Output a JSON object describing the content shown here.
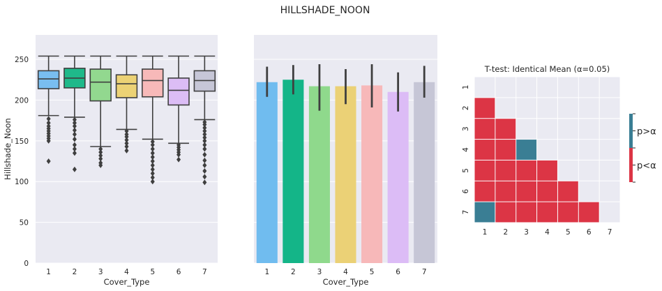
{
  "figure": {
    "title": "HILLSHADE_NOON"
  },
  "colors": {
    "boxes": [
      "#79bef0",
      "#1fb98a",
      "#92d88f",
      "#ecd275",
      "#f7b9b9",
      "#dcbdf5",
      "#c6c6d7"
    ],
    "bars": [
      "#70bcef",
      "#14b588",
      "#8fd98c",
      "#ebd176",
      "#f7b8b9",
      "#dcbcf6",
      "#c6c6d6"
    ],
    "panel_bg": "#eaeaf2",
    "grid": "#ffffff",
    "dark": "#3f3f3f",
    "ttest_sig": "#dc3545",
    "ttest_nonsig": "#3a7e94"
  },
  "chart_data": [
    {
      "type": "box",
      "xlabel": "Cover_Type",
      "ylabel": "Hillshade_Noon",
      "ylim": [
        0,
        280
      ],
      "yticks": [
        0,
        50,
        100,
        150,
        200,
        250
      ],
      "categories": [
        "1",
        "2",
        "3",
        "4",
        "5",
        "6",
        "7"
      ],
      "boxes": [
        {
          "whislo": 181,
          "q1": 214,
          "med": 226,
          "q3": 236,
          "whishi": 254,
          "fliers": [
            177,
            172,
            168,
            165,
            162,
            159,
            156,
            153,
            150,
            125
          ]
        },
        {
          "whislo": 179,
          "q1": 215,
          "med": 227,
          "q3": 239,
          "whishi": 254,
          "fliers": [
            176,
            172,
            168,
            163,
            158,
            152,
            145,
            140,
            135,
            115
          ]
        },
        {
          "whislo": 143,
          "q1": 199,
          "med": 222,
          "q3": 238,
          "whishi": 254,
          "fliers": [
            140,
            136,
            132,
            128,
            123,
            120
          ]
        },
        {
          "whislo": 164,
          "q1": 203,
          "med": 220,
          "q3": 231,
          "whishi": 254,
          "fliers": [
            162,
            158,
            155,
            151,
            147,
            143,
            138
          ]
        },
        {
          "whislo": 152,
          "q1": 204,
          "med": 224,
          "q3": 238,
          "whishi": 254,
          "fliers": [
            149,
            145,
            140,
            135,
            130,
            125,
            120,
            115,
            110,
            105,
            100
          ]
        },
        {
          "whislo": 147,
          "q1": 194,
          "med": 212,
          "q3": 227,
          "whishi": 254,
          "fliers": [
            145,
            142,
            139,
            136,
            133,
            127
          ]
        },
        {
          "whislo": 176,
          "q1": 211,
          "med": 224,
          "q3": 236,
          "whishi": 254,
          "fliers": [
            173,
            170,
            166,
            162,
            158,
            154,
            150,
            145,
            140,
            133,
            126,
            120,
            113,
            106,
            99
          ]
        }
      ]
    },
    {
      "type": "bar",
      "xlabel": "Cover_Type",
      "ylabel": "",
      "ylim": [
        0,
        280
      ],
      "categories": [
        "1",
        "2",
        "3",
        "4",
        "5",
        "6",
        "7"
      ],
      "values": [
        222,
        225,
        217,
        217,
        218,
        210,
        222
      ],
      "error_low": [
        204,
        207,
        187,
        195,
        191,
        186,
        203
      ],
      "error_high": [
        241,
        243,
        244,
        238,
        244,
        234,
        242
      ]
    },
    {
      "type": "heatmap",
      "title": "T-test: Identical Mean (α=0.05)",
      "xlabels": [
        "1",
        "2",
        "3",
        "4",
        "5",
        "6",
        "7"
      ],
      "ylabels": [
        "1",
        "2",
        "3",
        "4",
        "5",
        "6",
        "7"
      ],
      "matrix": [
        [
          null,
          null,
          null,
          null,
          null,
          null,
          null
        ],
        [
          0,
          null,
          null,
          null,
          null,
          null,
          null
        ],
        [
          0,
          0,
          null,
          null,
          null,
          null,
          null
        ],
        [
          0,
          0,
          1,
          null,
          null,
          null,
          null
        ],
        [
          0,
          0,
          0,
          0,
          null,
          null,
          null
        ],
        [
          0,
          0,
          0,
          0,
          0,
          null,
          null
        ],
        [
          1,
          0,
          0,
          0,
          0,
          0,
          null
        ]
      ],
      "legend": {
        "labels": [
          "p>α",
          "p<α"
        ],
        "values": [
          1,
          0
        ]
      }
    }
  ]
}
